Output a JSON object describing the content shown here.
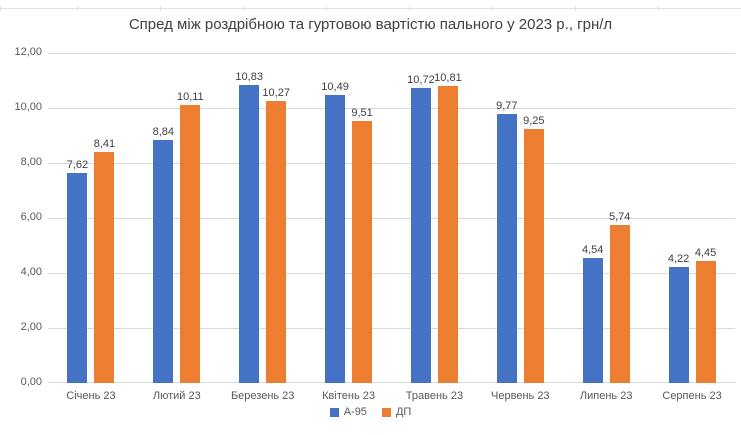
{
  "chart_data": {
    "type": "bar",
    "title": "Спред між роздрібною та гуртовою вартістю пального у 2023 р., грн/л",
    "categories": [
      "Січень 23",
      "Лютий 23",
      "Березень 23",
      "Квітень 23",
      "Травень 23",
      "Червень 23",
      "Липень 23",
      "Серпень 23"
    ],
    "series": [
      {
        "name": "А-95",
        "color": "#4472C4",
        "values": [
          7.62,
          8.84,
          10.83,
          10.49,
          10.72,
          9.77,
          4.54,
          4.22
        ]
      },
      {
        "name": "ДП",
        "color": "#ED7D31",
        "values": [
          8.41,
          10.11,
          10.27,
          9.51,
          10.81,
          9.25,
          5.74,
          4.45
        ]
      }
    ],
    "value_labels": [
      [
        "7,62",
        "8,84",
        "10,83",
        "10,49",
        "10,72",
        "9,77",
        "4,54",
        "4,22"
      ],
      [
        "8,41",
        "10,11",
        "10,27",
        "9,51",
        "10,81",
        "9,25",
        "5,74",
        "4,45"
      ]
    ],
    "y_ticks": [
      "12,00",
      "10,00",
      "8,00",
      "6,00",
      "4,00",
      "2,00",
      "0,00"
    ],
    "y_tick_values": [
      12,
      10,
      8,
      6,
      4,
      2,
      0
    ],
    "ylim": [
      0,
      12
    ],
    "grid": true,
    "legend_position": "bottom",
    "decimal_separator": ","
  },
  "colors": {
    "background": "#ffffff",
    "grid": "#d9d9d9",
    "axis_text": "#595959",
    "label_text": "#404040"
  }
}
